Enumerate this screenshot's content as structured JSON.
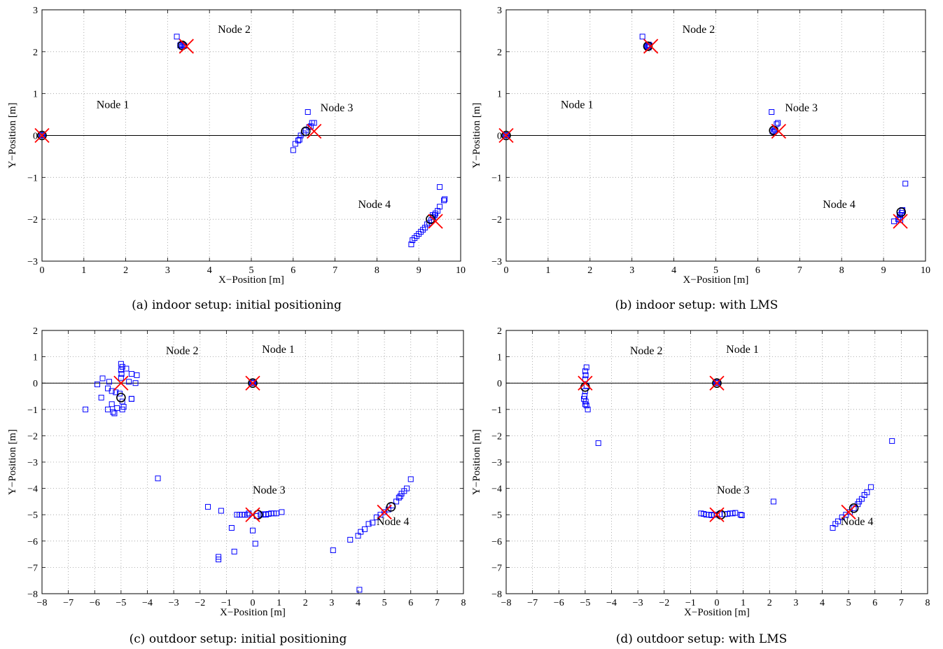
{
  "figure": {
    "captions": [
      "(a) indoor setup: initial positioning",
      "(b) indoor setup: with LMS",
      "(c) outdoor setup: initial positioning",
      "(d) outdoor setup: with LMS"
    ]
  },
  "style": {
    "estimate_color": "#0000ff",
    "anchor_color": "#ff0000",
    "mean_color": "#000000",
    "zero_line_color": "#000000"
  },
  "chart_data": [
    {
      "type": "scatter",
      "caption": "(a) indoor setup: initial positioning",
      "xlabel": "X−Position [m]",
      "ylabel": "Y−Position [m]",
      "xlim": [
        0,
        10
      ],
      "ylim": [
        -3,
        3
      ],
      "xticks": [
        0,
        1,
        2,
        3,
        4,
        5,
        6,
        7,
        8,
        9,
        10
      ],
      "yticks": [
        -3,
        -2,
        -1,
        0,
        1,
        2,
        3
      ],
      "grid": true,
      "zero_line": true,
      "node_labels": [
        {
          "text": "Node 1",
          "x": 1.3,
          "y": 0.65
        },
        {
          "text": "Node 2",
          "x": 4.2,
          "y": 2.45
        },
        {
          "text": "Node 3",
          "x": 6.65,
          "y": 0.58
        },
        {
          "text": "Node 4",
          "x": 7.55,
          "y": -1.73
        }
      ],
      "true_positions": [
        [
          0,
          0
        ],
        [
          3.45,
          2.13
        ],
        [
          6.5,
          0.1
        ],
        [
          9.4,
          -2.05
        ]
      ],
      "mean_estimates": [
        [
          0,
          0
        ],
        [
          3.35,
          2.15
        ],
        [
          6.3,
          0.1
        ],
        [
          9.28,
          -2.0
        ]
      ],
      "estimates": [
        [
          0,
          0
        ],
        [
          0.02,
          0.01
        ],
        [
          -0.01,
          0.0
        ],
        [
          3.22,
          2.36
        ],
        [
          3.3,
          2.15
        ],
        [
          3.34,
          2.12
        ],
        [
          3.37,
          2.16
        ],
        [
          3.32,
          2.17
        ],
        [
          3.4,
          2.14
        ],
        [
          6.35,
          0.56
        ],
        [
          6.5,
          0.3
        ],
        [
          6.45,
          0.3
        ],
        [
          6.3,
          0.12
        ],
        [
          6.25,
          0.05
        ],
        [
          6.18,
          0.0
        ],
        [
          6.15,
          -0.1
        ],
        [
          6.12,
          -0.12
        ],
        [
          6.05,
          -0.2
        ],
        [
          6.0,
          -0.35
        ],
        [
          6.38,
          0.2
        ],
        [
          6.42,
          0.22
        ],
        [
          9.5,
          -1.23
        ],
        [
          9.62,
          -1.52
        ],
        [
          9.6,
          -1.55
        ],
        [
          9.5,
          -1.7
        ],
        [
          9.45,
          -1.8
        ],
        [
          9.4,
          -1.86
        ],
        [
          9.35,
          -1.95
        ],
        [
          9.3,
          -2.02
        ],
        [
          9.25,
          -2.08
        ],
        [
          9.2,
          -2.12
        ],
        [
          9.15,
          -2.2
        ],
        [
          9.1,
          -2.25
        ],
        [
          9.05,
          -2.3
        ],
        [
          9.0,
          -2.35
        ],
        [
          8.95,
          -2.4
        ],
        [
          8.9,
          -2.45
        ],
        [
          8.85,
          -2.5
        ],
        [
          8.82,
          -2.6
        ],
        [
          9.33,
          -1.9
        ],
        [
          9.38,
          -1.9
        ]
      ]
    },
    {
      "type": "scatter",
      "caption": "(b) indoor setup: with LMS",
      "xlabel": "X−Position [m]",
      "ylabel": "Y−Position [m]",
      "xlim": [
        0,
        10
      ],
      "ylim": [
        -3,
        3
      ],
      "xticks": [
        0,
        1,
        2,
        3,
        4,
        5,
        6,
        7,
        8,
        9,
        10
      ],
      "yticks": [
        -3,
        -2,
        -1,
        0,
        1,
        2,
        3
      ],
      "grid": true,
      "zero_line": true,
      "node_labels": [
        {
          "text": "Node 1",
          "x": 1.3,
          "y": 0.65
        },
        {
          "text": "Node 2",
          "x": 4.2,
          "y": 2.45
        },
        {
          "text": "Node 3",
          "x": 6.65,
          "y": 0.58
        },
        {
          "text": "Node 4",
          "x": 7.55,
          "y": -1.73
        }
      ],
      "true_positions": [
        [
          0,
          0
        ],
        [
          3.45,
          2.13
        ],
        [
          6.5,
          0.1
        ],
        [
          9.4,
          -2.05
        ]
      ],
      "mean_estimates": [
        [
          0,
          0
        ],
        [
          3.38,
          2.13
        ],
        [
          6.38,
          0.12
        ],
        [
          9.42,
          -1.83
        ]
      ],
      "estimates": [
        [
          0,
          0
        ],
        [
          0.02,
          0.01
        ],
        [
          -0.01,
          0.0
        ],
        [
          3.25,
          2.36
        ],
        [
          3.38,
          2.12
        ],
        [
          3.4,
          2.1
        ],
        [
          3.42,
          2.15
        ],
        [
          3.36,
          2.14
        ],
        [
          3.4,
          2.17
        ],
        [
          6.33,
          0.56
        ],
        [
          6.48,
          0.3
        ],
        [
          6.45,
          0.27
        ],
        [
          6.4,
          0.15
        ],
        [
          6.35,
          0.1
        ],
        [
          6.38,
          0.08
        ],
        [
          6.42,
          0.12
        ],
        [
          9.52,
          -1.15
        ],
        [
          9.45,
          -1.8
        ],
        [
          9.43,
          -1.85
        ],
        [
          9.4,
          -1.9
        ],
        [
          9.38,
          -1.95
        ],
        [
          9.35,
          -2.0
        ],
        [
          9.4,
          -2.02
        ],
        [
          9.25,
          -2.05
        ],
        [
          9.45,
          -1.78
        ]
      ]
    },
    {
      "type": "scatter",
      "caption": "(c) outdoor setup: initial positioning",
      "xlabel": "X−Position [m]",
      "ylabel": "Y−Position [m]",
      "xlim": [
        -8,
        8
      ],
      "ylim": [
        -8,
        2
      ],
      "xticks": [
        -8,
        -7,
        -6,
        -5,
        -4,
        -3,
        -2,
        -1,
        0,
        1,
        2,
        3,
        4,
        5,
        6,
        7,
        8
      ],
      "yticks": [
        -8,
        -7,
        -6,
        -5,
        -4,
        -3,
        -2,
        -1,
        0,
        1,
        2
      ],
      "grid": true,
      "zero_line": true,
      "node_labels": [
        {
          "text": "Node 2",
          "x": -3.3,
          "y": 1.1
        },
        {
          "text": "Node 1",
          "x": 0.35,
          "y": 1.15
        },
        {
          "text": "Node 3",
          "x": 0.0,
          "y": -4.2
        },
        {
          "text": "Node 4",
          "x": 4.7,
          "y": -5.4
        }
      ],
      "true_positions": [
        [
          0,
          0
        ],
        [
          -5,
          0
        ],
        [
          0,
          -5
        ],
        [
          5,
          -4.9
        ]
      ],
      "mean_estimates": [
        [
          0,
          0
        ],
        [
          -5,
          -0.55
        ],
        [
          0.2,
          -5.0
        ],
        [
          5.25,
          -4.7
        ]
      ],
      "estimates": [
        [
          0,
          0
        ],
        [
          0.02,
          0.02
        ],
        [
          -0.02,
          0.01
        ],
        [
          -6.35,
          -1.0
        ],
        [
          -5.9,
          -0.05
        ],
        [
          -5.7,
          0.18
        ],
        [
          -5.5,
          -0.2
        ],
        [
          -5.45,
          0.05
        ],
        [
          -5.35,
          -0.3
        ],
        [
          -5.35,
          -0.8
        ],
        [
          -5.3,
          -1.1
        ],
        [
          -5.25,
          -1.15
        ],
        [
          -5.2,
          -0.35
        ],
        [
          -5.15,
          -0.95
        ],
        [
          -5.5,
          -1.0
        ],
        [
          -5.75,
          -0.55
        ],
        [
          -5.0,
          0.73
        ],
        [
          -4.95,
          0.62
        ],
        [
          -5.0,
          0.5
        ],
        [
          -4.98,
          0.35
        ],
        [
          -5.0,
          0.2
        ],
        [
          -5.05,
          -0.4
        ],
        [
          -4.95,
          -0.7
        ],
        [
          -4.9,
          -0.9
        ],
        [
          -4.95,
          -1.0
        ],
        [
          -4.8,
          0.55
        ],
        [
          -4.6,
          0.35
        ],
        [
          -4.7,
          0.05
        ],
        [
          -4.6,
          -0.6
        ],
        [
          -4.45,
          0.0
        ],
        [
          -4.4,
          0.3
        ],
        [
          -4.6,
          -0.6
        ],
        [
          -3.6,
          -3.62
        ],
        [
          -1.7,
          -4.7
        ],
        [
          -1.2,
          -4.85
        ],
        [
          -1.3,
          -6.6
        ],
        [
          -1.3,
          -6.7
        ],
        [
          -0.8,
          -5.5
        ],
        [
          -0.7,
          -6.4
        ],
        [
          -0.6,
          -5.0
        ],
        [
          -0.5,
          -5.0
        ],
        [
          -0.4,
          -5.0
        ],
        [
          -0.3,
          -5.0
        ],
        [
          -0.2,
          -5.0
        ],
        [
          0.0,
          -5.6
        ],
        [
          0.1,
          -6.1
        ],
        [
          0.3,
          -5.0
        ],
        [
          0.4,
          -4.98
        ],
        [
          0.5,
          -5.0
        ],
        [
          0.6,
          -4.97
        ],
        [
          0.7,
          -4.95
        ],
        [
          0.8,
          -4.95
        ],
        [
          0.9,
          -4.95
        ],
        [
          1.1,
          -4.9
        ],
        [
          -0.15,
          -4.95
        ],
        [
          0.15,
          -5.05
        ],
        [
          3.05,
          -6.35
        ],
        [
          3.7,
          -5.95
        ],
        [
          4.0,
          -5.8
        ],
        [
          4.05,
          -7.85
        ],
        [
          4.1,
          -5.65
        ],
        [
          4.25,
          -5.55
        ],
        [
          4.4,
          -5.35
        ],
        [
          4.55,
          -5.3
        ],
        [
          4.7,
          -5.1
        ],
        [
          4.85,
          -5.0
        ],
        [
          5.0,
          -4.9
        ],
        [
          5.15,
          -4.8
        ],
        [
          5.3,
          -4.65
        ],
        [
          5.45,
          -4.5
        ],
        [
          5.55,
          -4.35
        ],
        [
          5.65,
          -4.2
        ],
        [
          5.75,
          -4.1
        ],
        [
          5.85,
          -4.0
        ],
        [
          6.0,
          -3.65
        ],
        [
          5.6,
          -4.3
        ]
      ]
    },
    {
      "type": "scatter",
      "caption": "(d) outdoor setup: with LMS",
      "xlabel": "X−Position [m]",
      "ylabel": "Y−Position [m]",
      "xlim": [
        -8,
        8
      ],
      "ylim": [
        -8,
        2
      ],
      "xticks": [
        -8,
        -7,
        -6,
        -5,
        -4,
        -3,
        -2,
        -1,
        0,
        1,
        2,
        3,
        4,
        5,
        6,
        7,
        8
      ],
      "yticks": [
        -8,
        -7,
        -6,
        -5,
        -4,
        -3,
        -2,
        -1,
        0,
        1,
        2
      ],
      "grid": true,
      "zero_line": true,
      "node_labels": [
        {
          "text": "Node 2",
          "x": -3.3,
          "y": 1.1
        },
        {
          "text": "Node 1",
          "x": 0.35,
          "y": 1.15
        },
        {
          "text": "Node 3",
          "x": 0.0,
          "y": -4.2
        },
        {
          "text": "Node 4",
          "x": 4.7,
          "y": -5.4
        }
      ],
      "true_positions": [
        [
          0,
          0
        ],
        [
          -5,
          0
        ],
        [
          0,
          -5
        ],
        [
          5,
          -4.9
        ]
      ],
      "mean_estimates": [
        [
          0,
          0
        ],
        [
          -5,
          -0.15
        ],
        [
          0.15,
          -5.0
        ],
        [
          5.2,
          -4.75
        ]
      ],
      "estimates": [
        [
          0,
          0
        ],
        [
          0.02,
          0.02
        ],
        [
          -0.02,
          0.01
        ],
        [
          -4.95,
          0.6
        ],
        [
          -5.0,
          0.45
        ],
        [
          -4.98,
          0.3
        ],
        [
          -5.0,
          0.15
        ],
        [
          -4.95,
          -0.1
        ],
        [
          -5.0,
          -0.3
        ],
        [
          -5.02,
          -0.5
        ],
        [
          -4.98,
          -0.7
        ],
        [
          -4.95,
          -0.85
        ],
        [
          -4.9,
          -1.0
        ],
        [
          -5.05,
          -0.6
        ],
        [
          -5.0,
          -0.8
        ],
        [
          -4.5,
          -2.28
        ],
        [
          -0.6,
          -4.95
        ],
        [
          -0.5,
          -4.97
        ],
        [
          -0.4,
          -5.0
        ],
        [
          -0.3,
          -5.0
        ],
        [
          -0.2,
          -5.02
        ],
        [
          -0.1,
          -5.0
        ],
        [
          0.0,
          -5.0
        ],
        [
          0.1,
          -4.98
        ],
        [
          0.3,
          -4.98
        ],
        [
          0.4,
          -4.97
        ],
        [
          0.5,
          -4.95
        ],
        [
          0.6,
          -4.95
        ],
        [
          0.7,
          -4.93
        ],
        [
          0.9,
          -5.0
        ],
        [
          0.95,
          -5.02
        ],
        [
          2.15,
          -4.5
        ],
        [
          4.4,
          -5.5
        ],
        [
          4.5,
          -5.35
        ],
        [
          4.6,
          -5.25
        ],
        [
          4.75,
          -5.1
        ],
        [
          4.9,
          -5.0
        ],
        [
          5.05,
          -4.9
        ],
        [
          5.2,
          -4.75
        ],
        [
          5.35,
          -4.6
        ],
        [
          5.5,
          -4.4
        ],
        [
          5.6,
          -4.25
        ],
        [
          5.7,
          -4.15
        ],
        [
          5.85,
          -3.95
        ],
        [
          5.4,
          -4.5
        ],
        [
          6.65,
          -2.2
        ]
      ]
    }
  ]
}
